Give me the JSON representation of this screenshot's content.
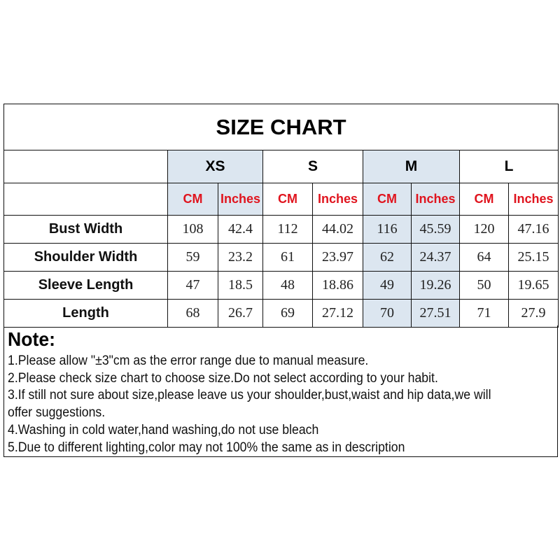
{
  "title": "SIZE CHART",
  "sizes": [
    "XS",
    "S",
    "M",
    "L"
  ],
  "units": {
    "cm": "CM",
    "inches": "Inches"
  },
  "highlight_color": "#dce6f0",
  "unit_color": "#e0141e",
  "rows": [
    {
      "label": "Bust Width",
      "values": [
        "108",
        "42.4",
        "112",
        "44.02",
        "116",
        "45.59",
        "120",
        "47.16"
      ]
    },
    {
      "label": "Shoulder Width",
      "values": [
        "59",
        "23.2",
        "61",
        "23.97",
        "62",
        "24.37",
        "64",
        "25.15"
      ]
    },
    {
      "label": "Sleeve Length",
      "values": [
        "47",
        "18.5",
        "48",
        "18.86",
        "49",
        "19.26",
        "50",
        "19.65"
      ]
    },
    {
      "label": "Length",
      "values": [
        "68",
        "26.7",
        "69",
        "27.12",
        "70",
        "27.51",
        "71",
        "27.9"
      ]
    }
  ],
  "note": {
    "title": "Note:",
    "lines": [
      "1.Please allow \"±3\"cm as the error range due to manual measure.",
      "2.Please check size chart to choose size.Do not select according to your habit.",
      "3.If still not sure about size,please leave us your shoulder,bust,waist and hip data,we will",
      "offer suggestions.",
      "4.Washing in cold water,hand washing,do not use bleach",
      "5.Due to different lighting,color may not 100% the same as in description"
    ]
  }
}
